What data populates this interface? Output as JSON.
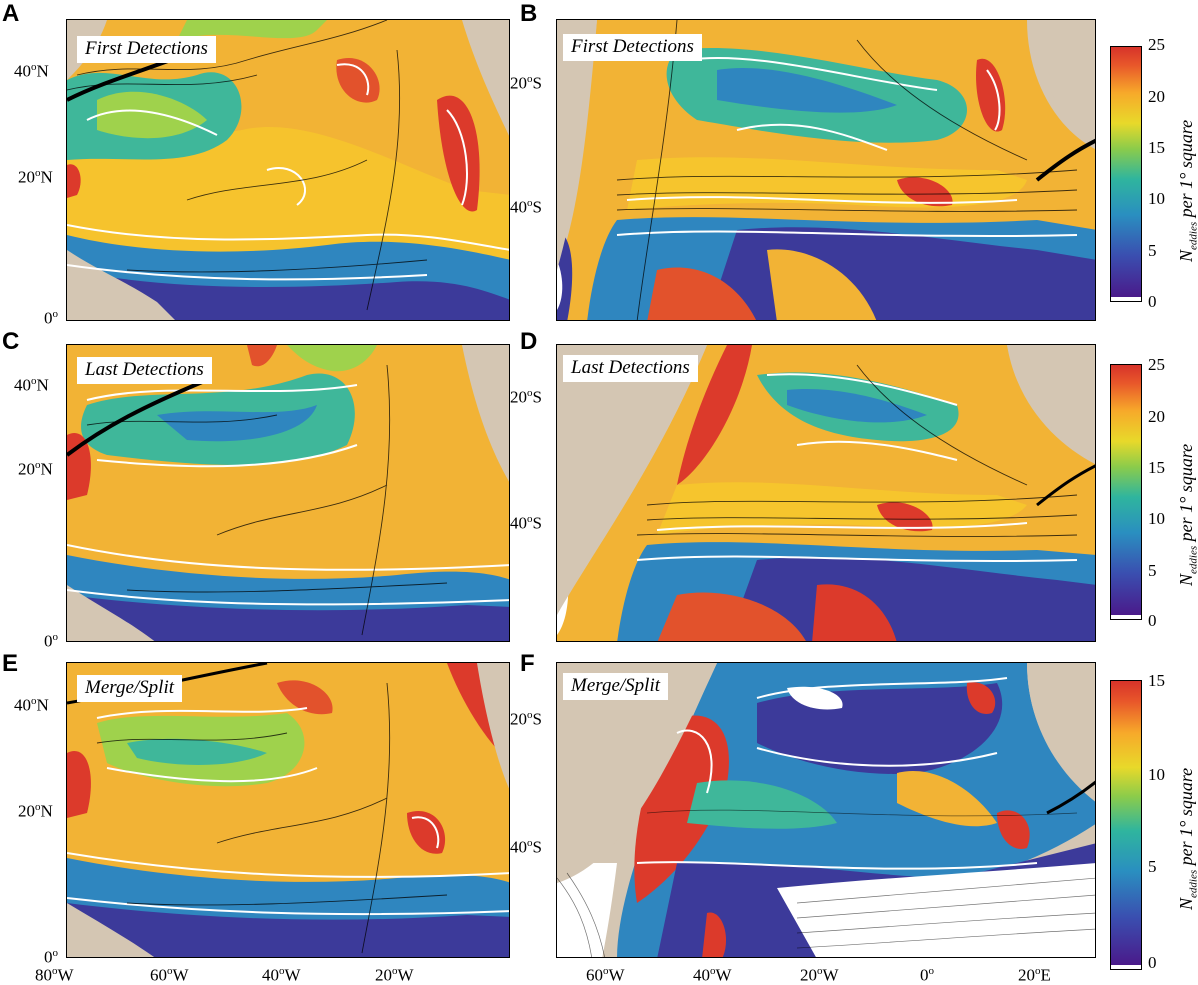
{
  "panels": [
    {
      "letter": "A",
      "label": "First Detections"
    },
    {
      "letter": "B",
      "label": "First Detections"
    },
    {
      "letter": "C",
      "label": "Last Detections"
    },
    {
      "letter": "D",
      "label": "Last Detections"
    },
    {
      "letter": "E",
      "label": "Merge/Split"
    },
    {
      "letter": "F",
      "label": "Merge/Split"
    }
  ],
  "north_lat_ticks": [
    "40",
    "N",
    "20",
    "N",
    "0",
    "o"
  ],
  "north_lon_ticks": [
    "80",
    "W",
    "60",
    "W",
    "40",
    "W",
    "20",
    "W"
  ],
  "south_lat_ticks": [
    "20",
    "S",
    "40",
    "S"
  ],
  "south_lon_ticks": [
    "60",
    "W",
    "40",
    "W",
    "20",
    "W",
    "0",
    "20",
    "E"
  ],
  "colorbars": [
    {
      "ticks": [
        "25",
        "20",
        "15",
        "10",
        "5",
        "0"
      ]
    },
    {
      "ticks": [
        "25",
        "20",
        "15",
        "10",
        "5",
        "0"
      ]
    },
    {
      "ticks": [
        "15",
        "10",
        "5",
        "0"
      ]
    }
  ],
  "colorbar_title": {
    "main": "N",
    "sub": "eddies",
    "rest": " per 1° square"
  },
  "colors": {
    "land": "#d4c6b3",
    "scale": [
      "#4a1a8a",
      "#3a4fb0",
      "#2a8fc0",
      "#2fb59e",
      "#8ccc4a",
      "#e8d92a",
      "#f7a92a",
      "#e8562a",
      "#d7332a"
    ]
  }
}
